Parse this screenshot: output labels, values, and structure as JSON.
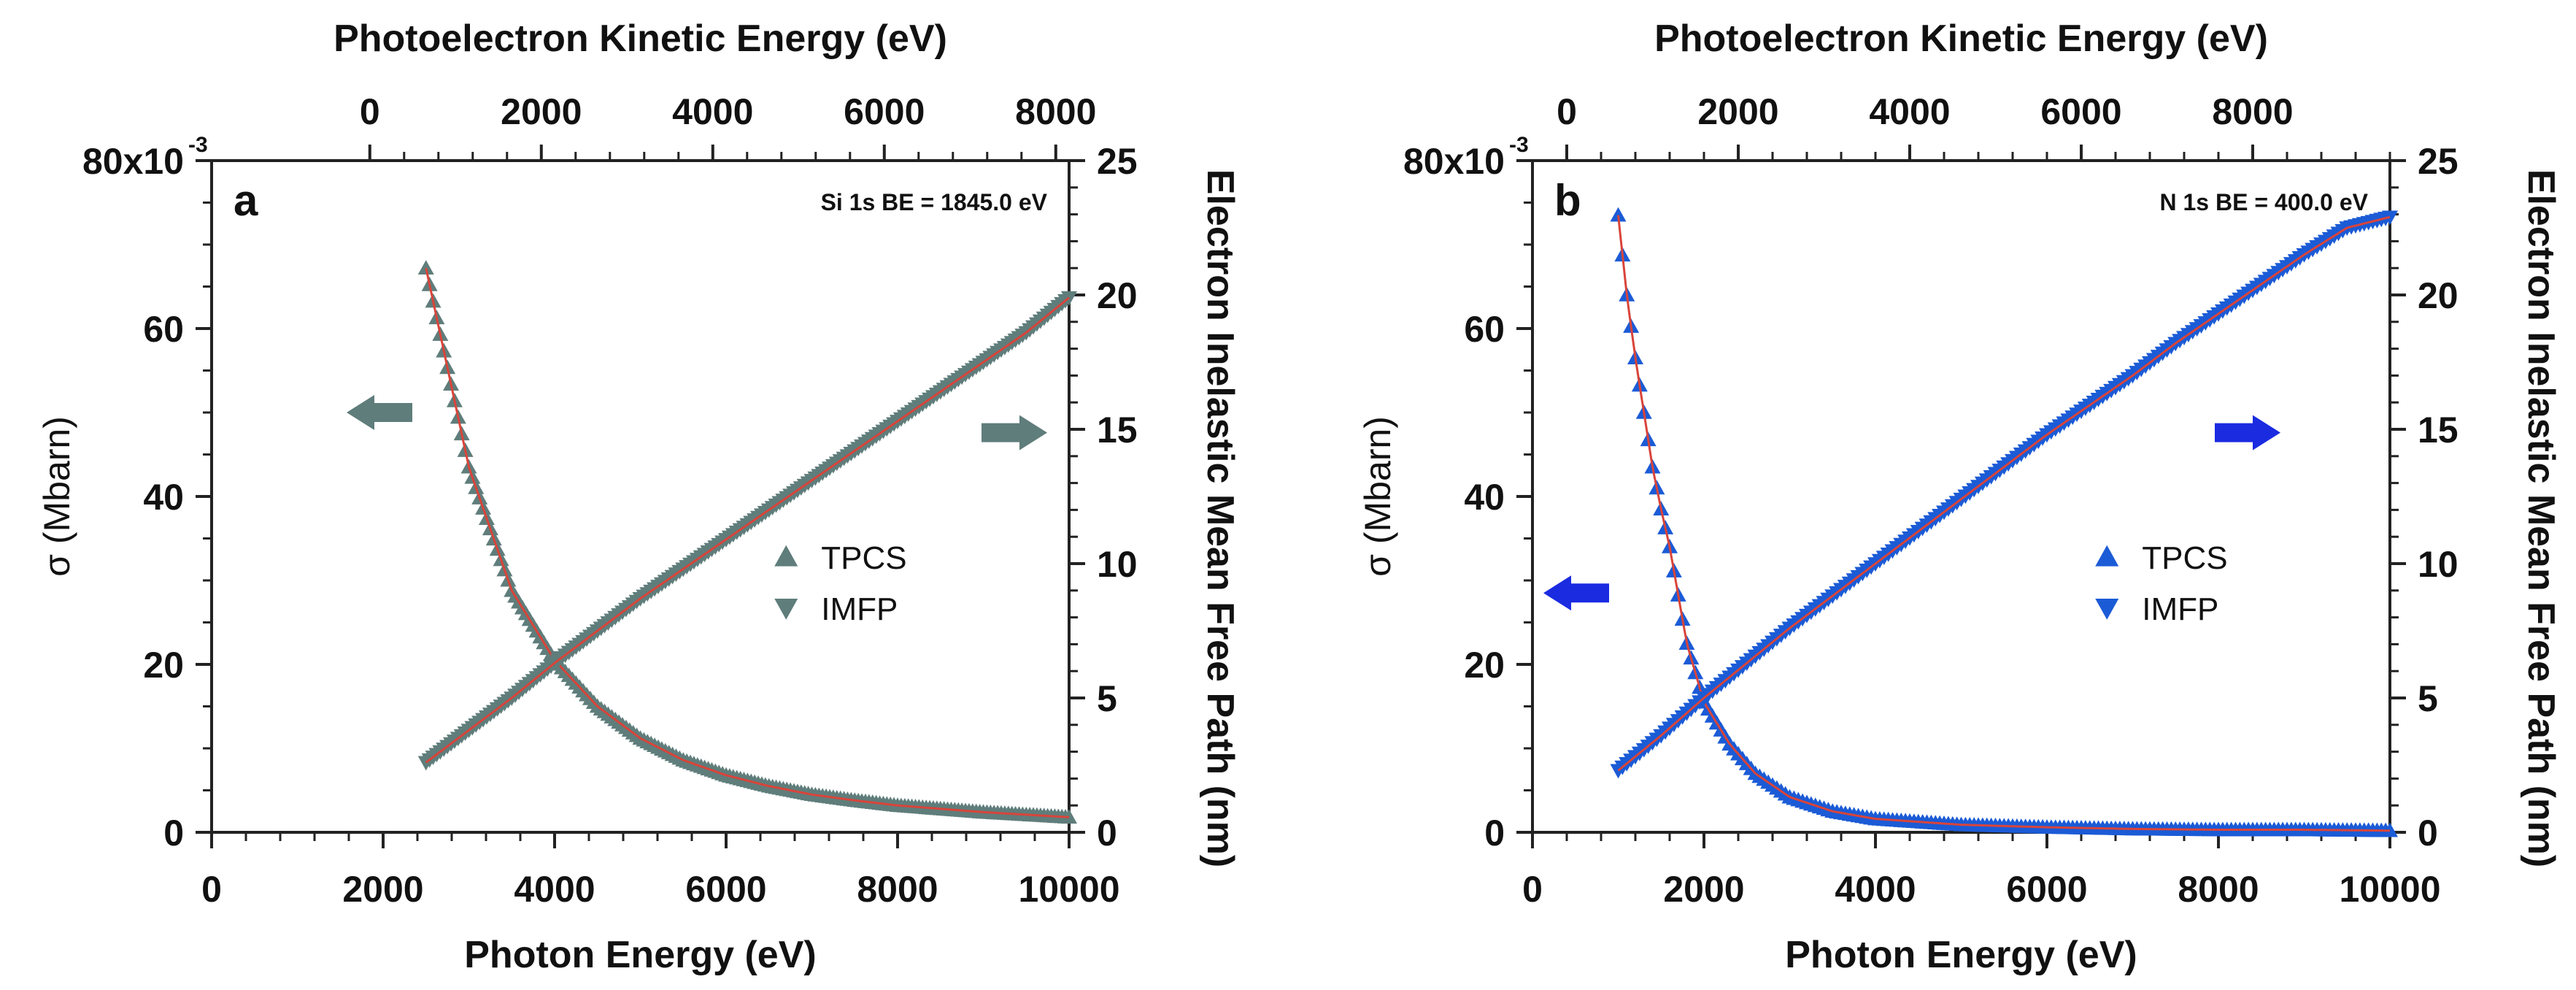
{
  "chart_data": [
    {
      "type": "scatter",
      "panel": "a",
      "annotation": "Si 1s BE = 1845.0 eV",
      "xlabel": "Photon Energy (eV)",
      "top_xlabel": "Photoelectron Kinetic Energy (eV)",
      "ylabel": "σ (Mbarn)",
      "y2label": "Electron Inelastic Mean Free Path (nm)",
      "binding_energy": 1845.0,
      "xlim": [
        0,
        10000
      ],
      "x_ticks": [
        0,
        2000,
        4000,
        6000,
        8000,
        10000
      ],
      "x_tick_labels": [
        "0",
        "2000",
        "4000",
        "6000",
        "8000",
        "10000"
      ],
      "top_ticks": [
        0,
        2000,
        4000,
        6000,
        8000
      ],
      "top_tick_labels": [
        "0",
        "2000",
        "4000",
        "6000",
        "8000"
      ],
      "ylim": [
        0,
        0.08
      ],
      "y_ticks": [
        0,
        0.02,
        0.04,
        0.06,
        0.08
      ],
      "y_tick_labels": [
        "0",
        "20",
        "40",
        "60",
        "80x10"
      ],
      "y_exponent": "-3",
      "y2lim": [
        0,
        25
      ],
      "y2_ticks": [
        0,
        5,
        10,
        15,
        20,
        25
      ],
      "y2_tick_labels": [
        "0",
        "5",
        "10",
        "15",
        "20",
        "25"
      ],
      "marker_color": "#5f7d7b",
      "fit_color": "#d9443a",
      "arrow_color": "#5f7d7b",
      "arrows": [
        {
          "direction": "left",
          "meaning": "TPCS uses left axis"
        },
        {
          "direction": "right",
          "meaning": "IMFP uses right axis"
        }
      ],
      "legend": [
        "TPCS",
        "IMFP"
      ],
      "legend_position": "center-right",
      "series": [
        {
          "name": "TPCS",
          "axis": "left",
          "marker": "triangle-up",
          "x": [
            2500,
            3000,
            3500,
            4000,
            4500,
            5000,
            5500,
            6000,
            6500,
            7000,
            7500,
            8000,
            8500,
            9000,
            9500,
            10000
          ],
          "y": [
            0.0672,
            0.0435,
            0.0288,
            0.0205,
            0.015,
            0.0112,
            0.0086,
            0.0068,
            0.0055,
            0.0045,
            0.0038,
            0.0032,
            0.0028,
            0.0024,
            0.0021,
            0.0018
          ]
        },
        {
          "name": "IMFP",
          "axis": "right",
          "marker": "triangle-down",
          "x": [
            2500,
            3000,
            3500,
            4000,
            4500,
            5000,
            5500,
            6000,
            6500,
            7000,
            7500,
            8000,
            8500,
            9000,
            9500,
            10000
          ],
          "y": [
            2.6,
            3.8,
            5.0,
            6.3,
            7.5,
            8.7,
            9.8,
            10.9,
            12.0,
            13.1,
            14.2,
            15.3,
            16.4,
            17.5,
            18.6,
            19.9
          ]
        }
      ]
    },
    {
      "type": "scatter",
      "panel": "b",
      "annotation": "N 1s BE = 400.0 eV",
      "xlabel": "Photon Energy (eV)",
      "top_xlabel": "Photoelectron Kinetic Energy (eV)",
      "ylabel": "σ (Mbarn)",
      "y2label": "Electron Inelastic Mean Free Path (nm)",
      "binding_energy": 400.0,
      "xlim": [
        0,
        10000
      ],
      "x_ticks": [
        0,
        2000,
        4000,
        6000,
        8000,
        10000
      ],
      "x_tick_labels": [
        "0",
        "2000",
        "4000",
        "6000",
        "8000",
        "10000"
      ],
      "top_ticks": [
        0,
        2000,
        4000,
        6000,
        8000
      ],
      "top_tick_labels": [
        "0",
        "2000",
        "4000",
        "6000",
        "8000"
      ],
      "ylim": [
        0,
        0.08
      ],
      "y_ticks": [
        0,
        0.02,
        0.04,
        0.06,
        0.08
      ],
      "y_tick_labels": [
        "0",
        "20",
        "40",
        "60",
        "80x10"
      ],
      "y_exponent": "-3",
      "y2lim": [
        0,
        25
      ],
      "y2_ticks": [
        0,
        5,
        10,
        15,
        20,
        25
      ],
      "y2_tick_labels": [
        "0",
        "5",
        "10",
        "15",
        "20",
        "25"
      ],
      "marker_color": "#1b5bd6",
      "fit_color": "#d9443a",
      "arrow_color": "#1a2be0",
      "arrows": [
        {
          "direction": "left",
          "meaning": "TPCS uses left axis"
        },
        {
          "direction": "right",
          "meaning": "IMFP uses right axis"
        }
      ],
      "legend": [
        "TPCS",
        "IMFP"
      ],
      "legend_position": "center-right",
      "series": [
        {
          "name": "TPCS",
          "axis": "left",
          "marker": "triangle-up",
          "x": [
            1000,
            1100,
            1200,
            1300,
            1400,
            1500,
            1600,
            1800,
            2000,
            2300,
            2600,
            3000,
            3500,
            4000,
            5000,
            6000,
            7000,
            8000,
            9000,
            10000
          ],
          "y": [
            0.0735,
            0.064,
            0.0565,
            0.05,
            0.0435,
            0.0385,
            0.034,
            0.0225,
            0.0155,
            0.0105,
            0.007,
            0.0042,
            0.0025,
            0.0016,
            0.0009,
            0.0006,
            0.0004,
            0.0003,
            0.0003,
            0.0002
          ]
        },
        {
          "name": "IMFP",
          "axis": "right",
          "marker": "triangle-down",
          "x": [
            1000,
            1500,
            2000,
            2500,
            3000,
            3500,
            4000,
            4500,
            5000,
            5500,
            6000,
            6500,
            7000,
            7500,
            8000,
            8500,
            9000,
            9500,
            10000
          ],
          "y": [
            2.3,
            3.6,
            5.0,
            6.3,
            7.6,
            8.8,
            10.0,
            11.2,
            12.4,
            13.6,
            14.8,
            15.9,
            17.0,
            18.2,
            19.3,
            20.4,
            21.5,
            22.5,
            22.9
          ]
        }
      ]
    }
  ]
}
